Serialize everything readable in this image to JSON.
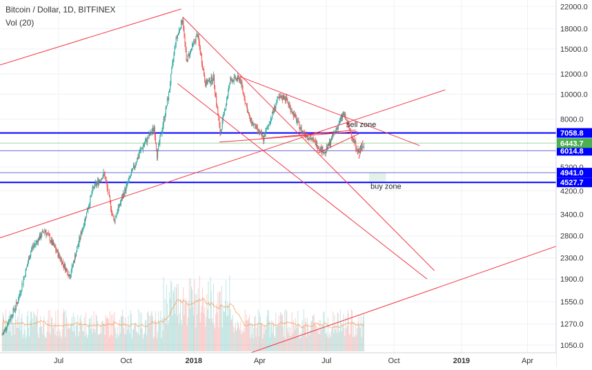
{
  "header": {
    "title": "Bitcoin / Dollar, 1D, BITFINEX",
    "volume_label": "Vol (20)"
  },
  "colors": {
    "background": "#ffffff",
    "grid": "#eef1f6",
    "axis_text": "#333333",
    "candle_up": "#26a69a",
    "candle_down": "#ef5350",
    "trendline": "#f23645",
    "level_line": "#0000ff",
    "thin_level": "#6b6bd6",
    "buy_zone_fill": "#e2f2e9",
    "current_price_bg": "#4caf50",
    "vol_ma": "#f7a35c"
  },
  "chart_data": {
    "type": "candlestick",
    "symbol": "Bitcoin / Dollar",
    "interval": "1D",
    "exchange": "BITFINEX",
    "scale": "log",
    "y_ticks": [
      1050,
      1270,
      1550,
      1900,
      2300,
      2800,
      3400,
      4200,
      5200,
      8000,
      10000,
      12000,
      15000,
      18000,
      22000
    ],
    "y_tick_labels": [
      "1050.0",
      "1270.0",
      "1550.0",
      "1900.0",
      "2300.0",
      "2800.0",
      "3400.0",
      "4200.0",
      "5200.0",
      "8000.0",
      "10000.0",
      "12000.0",
      "15000.0",
      "18000.0",
      "22000.0"
    ],
    "x_ticks": [
      {
        "date": "2017-07-01",
        "label": "Jul"
      },
      {
        "date": "2017-10-01",
        "label": "Oct"
      },
      {
        "date": "2018-01-01",
        "label": "2018"
      },
      {
        "date": "2018-04-01",
        "label": "Apr"
      },
      {
        "date": "2018-07-01",
        "label": "Jul"
      },
      {
        "date": "2018-10-01",
        "label": "Oct"
      },
      {
        "date": "2019-01-01",
        "label": "2019"
      },
      {
        "date": "2019-04-01",
        "label": "Apr"
      }
    ],
    "x_range": [
      "2017-04-12",
      "2019-05-10"
    ],
    "y_range": [
      980,
      23300
    ],
    "price_path": [
      [
        "2017-04-15",
        1150
      ],
      [
        "2017-05-06",
        1550
      ],
      [
        "2017-05-25",
        2500
      ],
      [
        "2017-06-12",
        2950
      ],
      [
        "2017-06-26",
        2500
      ],
      [
        "2017-07-16",
        1950
      ],
      [
        "2017-08-05",
        3200
      ],
      [
        "2017-08-17",
        4300
      ],
      [
        "2017-09-01",
        4900
      ],
      [
        "2017-09-14",
        3200
      ],
      [
        "2017-09-29",
        4200
      ],
      [
        "2017-10-20",
        6000
      ],
      [
        "2017-11-08",
        7400
      ],
      [
        "2017-11-12",
        5800
      ],
      [
        "2017-11-28",
        10000
      ],
      [
        "2017-12-07",
        16000
      ],
      [
        "2017-12-17",
        19700
      ],
      [
        "2017-12-22",
        13500
      ],
      [
        "2018-01-06",
        17100
      ],
      [
        "2018-01-17",
        11000
      ],
      [
        "2018-01-28",
        11600
      ],
      [
        "2018-02-06",
        7000
      ],
      [
        "2018-02-20",
        11400
      ],
      [
        "2018-03-05",
        11500
      ],
      [
        "2018-03-18",
        8000
      ],
      [
        "2018-04-06",
        6700
      ],
      [
        "2018-04-25",
        9500
      ],
      [
        "2018-05-05",
        9800
      ],
      [
        "2018-05-28",
        7200
      ],
      [
        "2018-06-10",
        6700
      ],
      [
        "2018-06-29",
        5900
      ],
      [
        "2018-07-24",
        8400
      ],
      [
        "2018-08-10",
        6300
      ],
      [
        "2018-08-14",
        5900
      ],
      [
        "2018-08-21",
        6440
      ]
    ],
    "current_price": 6443.7,
    "current_price_label": "6443.7",
    "levels": [
      {
        "price": 7058.8,
        "label": "7058.8",
        "style": "bold"
      },
      {
        "price": 6014.8,
        "label": "6014.8",
        "style": "thin"
      },
      {
        "price": 4941.0,
        "label": "4941.0",
        "style": "thin"
      },
      {
        "price": 4527.7,
        "label": "4527.7",
        "style": "bold"
      }
    ],
    "zones": [
      {
        "from": "2018-08-28",
        "to": "2018-09-20",
        "price_top": 4941.0,
        "price_bottom": 4527.7
      }
    ],
    "annotations": [
      {
        "text": "sell zone",
        "date": "2018-07-28",
        "price": 7450
      },
      {
        "text": "buy zone",
        "date": "2018-08-30",
        "price": 4280
      }
    ],
    "trendlines": [
      {
        "from": [
          "2017-04-12",
          13000
        ],
        "to": [
          "2017-12-15",
          21500
        ]
      },
      {
        "from": [
          "2017-04-12",
          2750
        ],
        "to": [
          "2018-12-10",
          10400
        ]
      },
      {
        "from": [
          "2017-12-17",
          20000
        ],
        "to": [
          "2018-11-25",
          2050
        ]
      },
      {
        "from": [
          "2017-12-10",
          11000
        ],
        "to": [
          "2018-11-15",
          1900
        ]
      },
      {
        "from": [
          "2018-03-05",
          11700
        ],
        "to": [
          "2018-11-05",
          6300
        ]
      },
      {
        "from": [
          "2018-02-05",
          6500
        ],
        "to": [
          "2018-08-12",
          7150
        ]
      },
      {
        "from": [
          "2018-04-02",
          6700
        ],
        "to": [
          "2018-08-10",
          7250
        ]
      },
      {
        "from": [
          "2018-06-20",
          5900
        ],
        "to": [
          "2018-08-14",
          7000
        ]
      },
      {
        "from": [
          "2018-08-13",
          5950
        ],
        "to": [
          "2018-08-20",
          6600
        ]
      },
      {
        "from": [
          "2018-08-14",
          5600
        ],
        "to": [
          "2018-08-18",
          6150
        ]
      },
      {
        "from": [
          "2018-03-20",
          980
        ],
        "to": [
          "2019-05-10",
          2550
        ]
      }
    ]
  }
}
